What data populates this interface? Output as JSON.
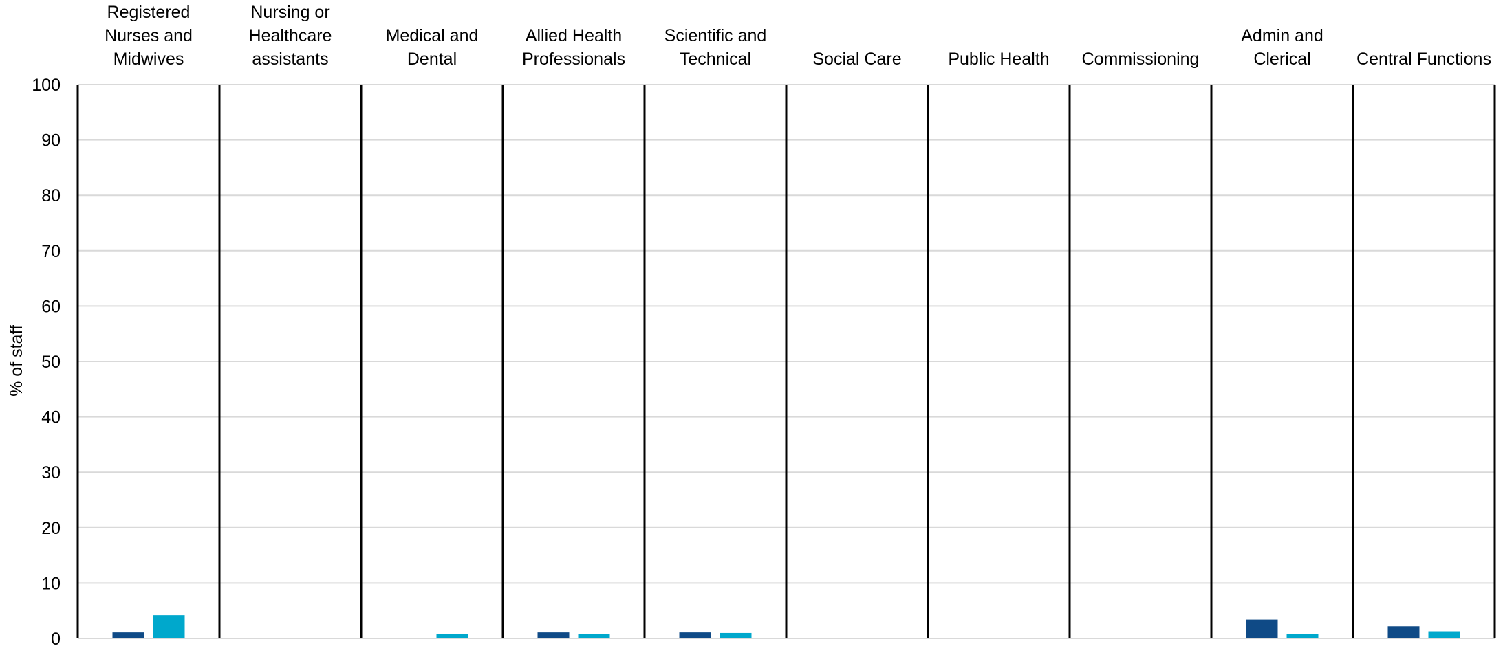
{
  "chart_data": {
    "type": "bar",
    "title": "",
    "xlabel": "",
    "ylabel": "% of staff",
    "ylim": [
      0,
      100
    ],
    "yticks": [
      0,
      10,
      20,
      30,
      40,
      50,
      60,
      70,
      80,
      90,
      100
    ],
    "grid": true,
    "legend": "none",
    "categories": [
      [
        "Registered",
        "Nurses and",
        "Midwives"
      ],
      [
        "Nursing or",
        "Healthcare",
        "assistants"
      ],
      [
        "Medical and",
        "Dental"
      ],
      [
        "Allied Health",
        "Professionals"
      ],
      [
        "Scientific and",
        "Technical"
      ],
      [
        "Social Care"
      ],
      [
        "Public Health"
      ],
      [
        "Commissioning"
      ],
      [
        "Admin and",
        "Clerical"
      ],
      [
        "Central Functions"
      ]
    ],
    "series": [
      {
        "color": "#0f4a86",
        "values": [
          1.1,
          0,
          0,
          1.1,
          1.1,
          0,
          0,
          0,
          3.4,
          2.2
        ]
      },
      {
        "color": "#00a8cc",
        "values": [
          4.2,
          0,
          0.8,
          0.8,
          1.0,
          0,
          0,
          0,
          0.8,
          1.3
        ]
      }
    ]
  }
}
